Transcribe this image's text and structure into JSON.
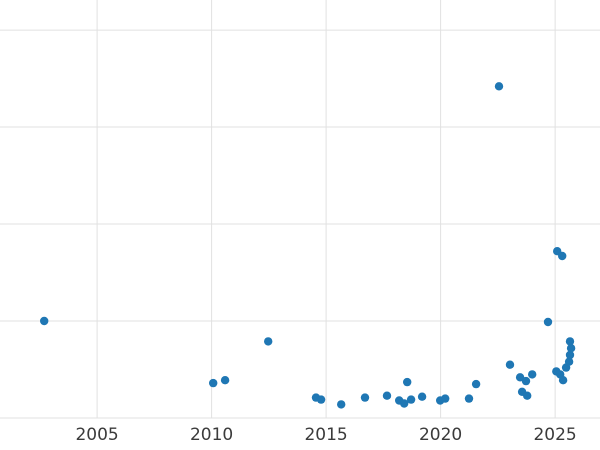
{
  "chart_data": {
    "type": "scatter",
    "title": "",
    "xlabel": "",
    "ylabel": "",
    "x_tick_labels": [
      "2005",
      "2010",
      "2015",
      "2020",
      "2025"
    ],
    "x_ticks": [
      2005,
      2010,
      2015,
      2020,
      2025
    ],
    "y_gridline_values": [
      0,
      1,
      2,
      3,
      4
    ],
    "xlim": [
      2000.76,
      2026.96
    ],
    "ylim": [
      0,
      4.31
    ],
    "grid": true,
    "legend": "none",
    "marker_color": "#1f77b4",
    "marker_radius": 4.2,
    "gridline_color": "#e1e1e1",
    "tick_label_color": "#3b3b3b",
    "points": [
      {
        "x": 2002.69,
        "y": 1.0
      },
      {
        "x": 2010.07,
        "y": 0.36
      },
      {
        "x": 2010.59,
        "y": 0.39
      },
      {
        "x": 2012.47,
        "y": 0.79
      },
      {
        "x": 2014.56,
        "y": 0.21
      },
      {
        "x": 2014.78,
        "y": 0.19
      },
      {
        "x": 2015.66,
        "y": 0.14
      },
      {
        "x": 2016.7,
        "y": 0.21
      },
      {
        "x": 2017.66,
        "y": 0.23
      },
      {
        "x": 2018.19,
        "y": 0.18
      },
      {
        "x": 2018.41,
        "y": 0.15
      },
      {
        "x": 2018.54,
        "y": 0.37
      },
      {
        "x": 2018.71,
        "y": 0.19
      },
      {
        "x": 2019.19,
        "y": 0.22
      },
      {
        "x": 2019.98,
        "y": 0.18
      },
      {
        "x": 2020.2,
        "y": 0.2
      },
      {
        "x": 2021.24,
        "y": 0.2
      },
      {
        "x": 2021.55,
        "y": 0.35
      },
      {
        "x": 2022.55,
        "y": 3.42
      },
      {
        "x": 2023.03,
        "y": 0.55
      },
      {
        "x": 2023.47,
        "y": 0.42
      },
      {
        "x": 2023.56,
        "y": 0.27
      },
      {
        "x": 2023.73,
        "y": 0.38
      },
      {
        "x": 2023.78,
        "y": 0.23
      },
      {
        "x": 2024.0,
        "y": 0.45
      },
      {
        "x": 2024.69,
        "y": 0.99
      },
      {
        "x": 2025.05,
        "y": 0.48
      },
      {
        "x": 2025.09,
        "y": 1.72
      },
      {
        "x": 2025.22,
        "y": 0.45
      },
      {
        "x": 2025.31,
        "y": 1.67
      },
      {
        "x": 2025.35,
        "y": 0.39
      },
      {
        "x": 2025.48,
        "y": 0.52
      },
      {
        "x": 2025.61,
        "y": 0.58
      },
      {
        "x": 2025.65,
        "y": 0.65
      },
      {
        "x": 2025.65,
        "y": 0.79
      },
      {
        "x": 2025.7,
        "y": 0.72
      }
    ]
  }
}
